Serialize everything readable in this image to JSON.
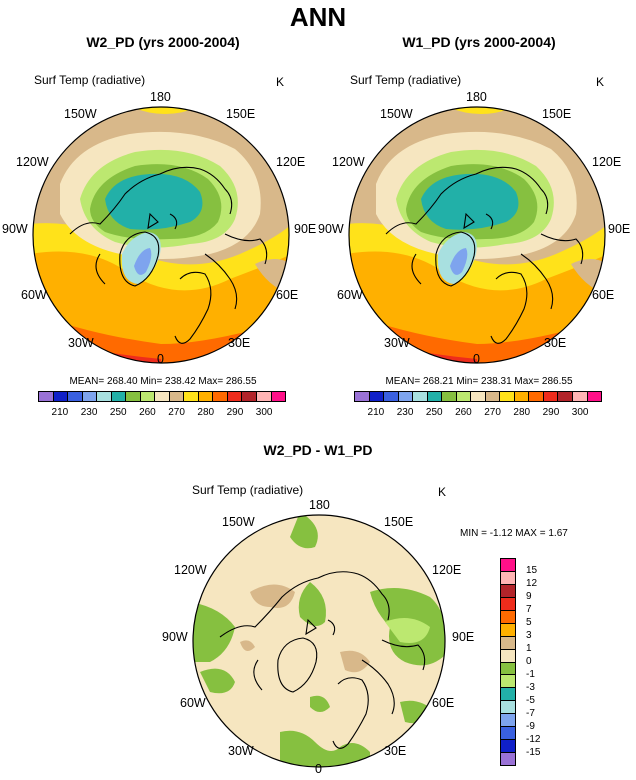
{
  "title": "ANN",
  "panels": [
    {
      "title": "W2_PD (yrs 2000-2004)",
      "variable": "Surf Temp (radiative)",
      "units": "K",
      "stats": "MEAN= 268.40  Min= 238.42  Max= 286.55"
    },
    {
      "title": "W1_PD (yrs 2000-2004)",
      "variable": "Surf Temp (radiative)",
      "units": "K",
      "stats": "MEAN= 268.21  Min= 238.31  Max= 286.55"
    }
  ],
  "diff_panel": {
    "title": "W2_PD - W1_PD",
    "variable": "Surf Temp (radiative)",
    "units": "K",
    "stats": "MIN =  -1.12 MAX =   1.67"
  },
  "lon_labels": {
    "top": "180",
    "top_right": "150E",
    "right_upper": "120E",
    "right": "90E",
    "right_lower": "60E",
    "bottom_right": "30E",
    "bottom": "0",
    "bottom_left": "30W",
    "left_lower": "60W",
    "left": "90W",
    "left_upper": "120W",
    "top_left": "150W"
  },
  "abs_colorbar": {
    "colors": [
      "#9a72d6",
      "#1020c8",
      "#3a60e0",
      "#7ea4ee",
      "#a8e0e0",
      "#22b0a8",
      "#86c040",
      "#bce870",
      "#f6e6c0",
      "#d8b88a",
      "#ffe21a",
      "#ffb000",
      "#ff6a00",
      "#ee2c1c",
      "#b2242a",
      "#ffb4b4",
      "#ff1088"
    ],
    "labels": [
      "210",
      "230",
      "250",
      "260",
      "270",
      "280",
      "290",
      "300"
    ]
  },
  "diff_colorbar": {
    "colors": [
      "#ff1088",
      "#ffb4b4",
      "#b2242a",
      "#ee2c1c",
      "#ff6a00",
      "#ffb000",
      "#d8b88a",
      "#f6e6c0",
      "#86c040",
      "#bce870",
      "#22b0a8",
      "#a8e0e0",
      "#7ea4ee",
      "#3a60e0",
      "#1020c8",
      "#9a72d6"
    ],
    "labels": [
      "15",
      "12",
      "9",
      "7",
      "5",
      "3",
      "1",
      "0",
      "-1",
      "-3",
      "-5",
      "-7",
      "-9",
      "-12",
      "-15"
    ]
  }
}
